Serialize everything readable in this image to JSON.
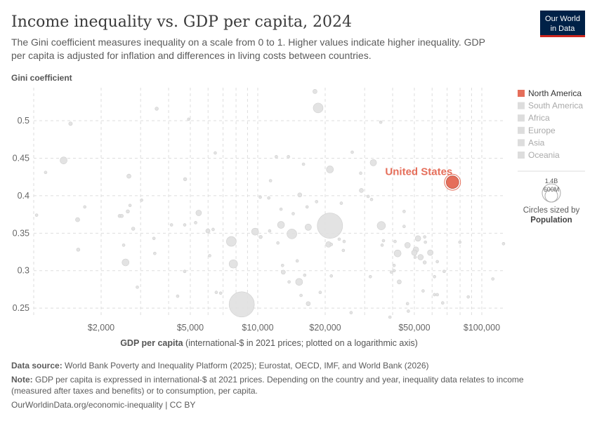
{
  "header": {
    "title": "Income inequality vs. GDP per capita, 2024",
    "subtitle_line1": "The Gini coefficient measures inequality on a scale from 0 to 1. Higher values indicate higher inequality. GDP",
    "subtitle_line2": "per capita is adjusted for inflation and differences in living costs between countries.",
    "logo_line1": "Our World",
    "logo_line2": "in Data"
  },
  "legend": {
    "items": [
      {
        "label": "North America",
        "color": "#e56e5a",
        "active": true
      },
      {
        "label": "South America",
        "color": "#dddddd",
        "active": false
      },
      {
        "label": "Africa",
        "color": "#dddddd",
        "active": false
      },
      {
        "label": "Europe",
        "color": "#dddddd",
        "active": false
      },
      {
        "label": "Asia",
        "color": "#dddddd",
        "active": false
      },
      {
        "label": "Oceania",
        "color": "#dddddd",
        "active": false
      }
    ],
    "size_large": "1.4B",
    "size_small": "600M",
    "size_caption": "Circles sized by",
    "size_variable": "Population"
  },
  "chart_data": {
    "type": "scatter",
    "title": "Income inequality vs. GDP per capita, 2024",
    "ylabel": "Gini coefficient",
    "xlabel_bold": "GDP per capita",
    "xlabel_rest": " (international-$ in 2021 prices; plotted on a logarithmic axis)",
    "x_scale": "log",
    "xlim": [
      1000,
      126000
    ],
    "ylim": [
      0.238,
      0.544
    ],
    "x_ticks": [
      {
        "v": 2000,
        "label": "$2,000"
      },
      {
        "v": 5000,
        "label": "$5,000"
      },
      {
        "v": 10000,
        "label": "$10,000"
      },
      {
        "v": 20000,
        "label": "$20,000"
      },
      {
        "v": 50000,
        "label": "$50,000"
      },
      {
        "v": 100000,
        "label": "$100,000"
      }
    ],
    "y_ticks": [
      {
        "v": 0.25,
        "label": "0.25"
      },
      {
        "v": 0.3,
        "label": "0.3"
      },
      {
        "v": 0.35,
        "label": "0.35"
      },
      {
        "v": 0.4,
        "label": "0.4"
      },
      {
        "v": 0.45,
        "label": "0.45"
      },
      {
        "v": 0.5,
        "label": "0.5"
      }
    ],
    "grid": true,
    "size_variable": "Population (millions)",
    "highlight_color": "#e56e5a",
    "other_color": "#e0e0e0",
    "highlighted": [
      {
        "label": "United States",
        "x": 74000,
        "y": 0.418,
        "pop": 345
      }
    ],
    "points": [
      [
        18000,
        0.539,
        40
      ],
      [
        18600,
        0.517,
        210
      ],
      [
        1460,
        0.496,
        30
      ],
      [
        3540,
        0.516,
        25
      ],
      [
        4920,
        0.502,
        17
      ],
      [
        35400,
        0.498,
        17
      ],
      [
        1360,
        0.447,
        108
      ],
      [
        1130,
        0.431,
        17
      ],
      [
        2660,
        0.426,
        39
      ],
      [
        6460,
        0.457,
        17
      ],
      [
        4740,
        0.422,
        25
      ],
      [
        3030,
        0.394,
        17
      ],
      [
        10260,
        0.398,
        17
      ],
      [
        26400,
        0.458,
        17
      ],
      [
        12100,
        0.452,
        17
      ],
      [
        13700,
        0.452,
        17
      ],
      [
        16000,
        0.442,
        17
      ],
      [
        21000,
        0.435,
        108
      ],
      [
        32800,
        0.444,
        90
      ],
      [
        28800,
        0.43,
        17
      ],
      [
        11400,
        0.42,
        17
      ],
      [
        15400,
        0.401,
        39
      ],
      [
        29000,
        0.407,
        39
      ],
      [
        11200,
        0.397,
        17
      ],
      [
        31100,
        0.399,
        17
      ],
      [
        32200,
        0.395,
        17
      ],
      [
        18300,
        0.392,
        17
      ],
      [
        23600,
        0.39,
        17
      ],
      [
        1030,
        0.374,
        17
      ],
      [
        1690,
        0.385,
        17
      ],
      [
        1570,
        0.368,
        39
      ],
      [
        1580,
        0.328,
        25
      ],
      [
        2420,
        0.373,
        25
      ],
      [
        2470,
        0.373,
        25
      ],
      [
        2630,
        0.379,
        25
      ],
      [
        2690,
        0.387,
        17
      ],
      [
        2780,
        0.356,
        25
      ],
      [
        2520,
        0.334,
        17
      ],
      [
        2570,
        0.311,
        108
      ],
      [
        3440,
        0.343,
        17
      ],
      [
        3470,
        0.323,
        17
      ],
      [
        2900,
        0.278,
        17
      ],
      [
        4120,
        0.361,
        17
      ],
      [
        4720,
        0.361,
        17
      ],
      [
        5450,
        0.377,
        69
      ],
      [
        5280,
        0.364,
        17
      ],
      [
        5990,
        0.353,
        39
      ],
      [
        6320,
        0.355,
        17
      ],
      [
        4720,
        0.299,
        17
      ],
      [
        4390,
        0.266,
        17
      ],
      [
        6100,
        0.32,
        17
      ],
      [
        7620,
        0.339,
        212
      ],
      [
        7780,
        0.309,
        156
      ],
      [
        6530,
        0.271,
        17
      ],
      [
        6830,
        0.27,
        17
      ],
      [
        8480,
        0.255,
        1400
      ],
      [
        9730,
        0.352,
        108
      ],
      [
        10300,
        0.345,
        25
      ],
      [
        12700,
        0.382,
        17
      ],
      [
        14400,
        0.376,
        17
      ],
      [
        16600,
        0.385,
        17
      ],
      [
        12700,
        0.361,
        108
      ],
      [
        14200,
        0.349,
        210
      ],
      [
        16800,
        0.358,
        90
      ],
      [
        21000,
        0.36,
        1410
      ],
      [
        35600,
        0.36,
        150
      ],
      [
        45000,
        0.379,
        17
      ],
      [
        45000,
        0.359,
        17
      ],
      [
        11300,
        0.353,
        17
      ],
      [
        12300,
        0.337,
        17
      ],
      [
        20700,
        0.335,
        69
      ],
      [
        21300,
        0.335,
        17
      ],
      [
        23100,
        0.342,
        17
      ],
      [
        24300,
        0.339,
        17
      ],
      [
        24100,
        0.327,
        17
      ],
      [
        15000,
        0.313,
        17
      ],
      [
        12900,
        0.307,
        17
      ],
      [
        13000,
        0.298,
        39
      ],
      [
        16200,
        0.294,
        17
      ],
      [
        13800,
        0.285,
        17
      ],
      [
        15300,
        0.285,
        108
      ],
      [
        21300,
        0.293,
        17
      ],
      [
        19000,
        0.271,
        17
      ],
      [
        15600,
        0.267,
        17
      ],
      [
        16800,
        0.256,
        39
      ],
      [
        26100,
        0.244,
        17
      ],
      [
        31800,
        0.292,
        17
      ],
      [
        36400,
        0.34,
        17
      ],
      [
        35900,
        0.334,
        17
      ],
      [
        41000,
        0.339,
        17
      ],
      [
        42100,
        0.323,
        108
      ],
      [
        46600,
        0.334,
        69
      ],
      [
        51900,
        0.343,
        69
      ],
      [
        55600,
        0.345,
        17
      ],
      [
        56000,
        0.338,
        17
      ],
      [
        50800,
        0.328,
        69
      ],
      [
        50000,
        0.324,
        69
      ],
      [
        50400,
        0.318,
        17
      ],
      [
        53300,
        0.318,
        69
      ],
      [
        58900,
        0.324,
        69
      ],
      [
        55600,
        0.311,
        25
      ],
      [
        63300,
        0.312,
        17
      ],
      [
        40600,
        0.307,
        17
      ],
      [
        40600,
        0.3,
        17
      ],
      [
        39500,
        0.298,
        17
      ],
      [
        42800,
        0.285,
        39
      ],
      [
        67900,
        0.299,
        17
      ],
      [
        61500,
        0.292,
        17
      ],
      [
        54700,
        0.273,
        17
      ],
      [
        61500,
        0.268,
        17
      ],
      [
        63300,
        0.268,
        17
      ],
      [
        66900,
        0.257,
        17
      ],
      [
        46600,
        0.256,
        17
      ],
      [
        47000,
        0.246,
        17
      ],
      [
        38900,
        0.238,
        17
      ],
      [
        79800,
        0.338,
        17
      ],
      [
        87000,
        0.265,
        17
      ],
      [
        112000,
        0.289,
        17
      ],
      [
        125000,
        0.336,
        17
      ]
    ]
  },
  "footer": {
    "source_label": "Data source:",
    "source_text": " World Bank Poverty and Inequality Platform (2025); Eurostat, OECD, IMF, and World Bank (2026)",
    "note_label": "Note:",
    "note_line1": " GDP per capita is expressed in international-$ at 2021 prices. Depending on the country and year, inequality data relates to income",
    "note_line2": "(measured after taxes and benefits) or to consumption, per capita.",
    "credit": "OurWorldinData.org/economic-inequality | CC BY"
  }
}
